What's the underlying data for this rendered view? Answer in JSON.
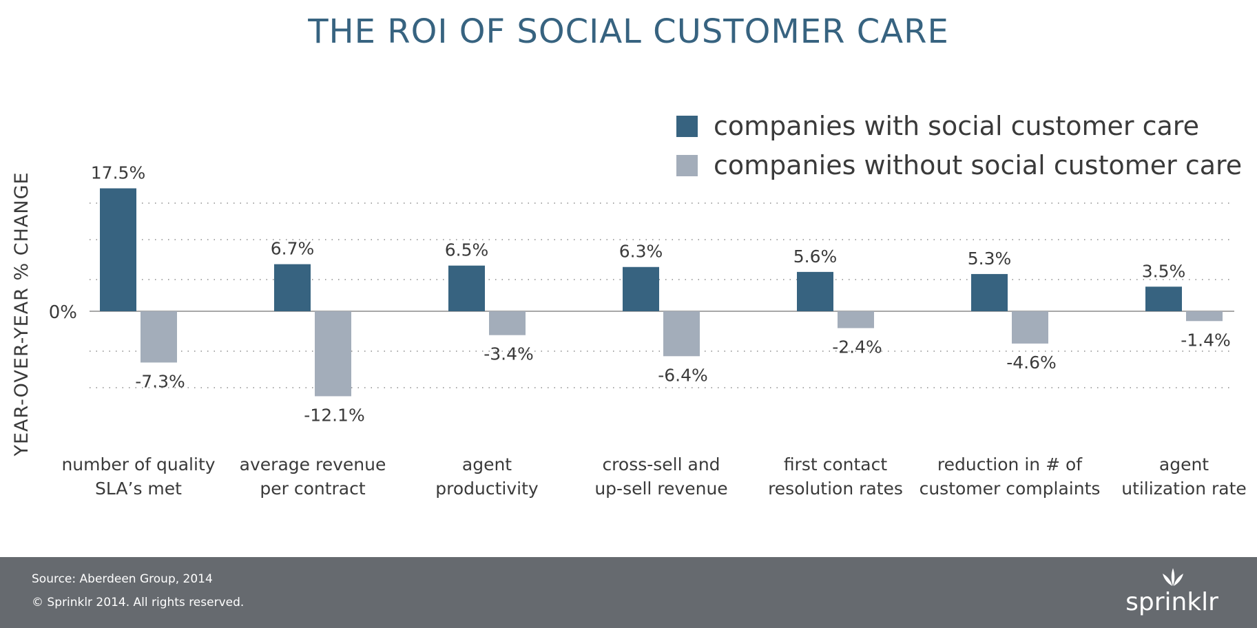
{
  "chart_data": {
    "type": "bar",
    "title": "THE ROI OF SOCIAL CUSTOMER CARE",
    "ylabel": "YEAR-OVER-YEAR % CHANGE",
    "zero_label": "0%",
    "ylim": [
      -12.1,
      17.5
    ],
    "grid": "dotted",
    "legend_position": "top-right",
    "categories": [
      [
        "number of quality",
        "SLA’s met"
      ],
      [
        "average revenue",
        "per contract"
      ],
      [
        "agent",
        "productivity"
      ],
      [
        "cross-sell and",
        "up-sell revenue"
      ],
      [
        "first contact",
        "resolution rates"
      ],
      [
        "reduction in # of",
        "customer complaints"
      ],
      [
        "agent",
        "utilization rate"
      ]
    ],
    "series": [
      {
        "name": "companies with social customer care",
        "color": "#376380",
        "values": [
          17.5,
          6.7,
          6.5,
          6.3,
          5.6,
          5.3,
          3.5
        ],
        "labels": [
          "17.5%",
          "6.7%",
          "6.5%",
          "6.3%",
          "5.6%",
          "5.3%",
          "3.5%"
        ]
      },
      {
        "name": "companies without social customer care",
        "color": "#a3adba",
        "values": [
          -7.3,
          -12.1,
          -3.4,
          -6.4,
          -2.4,
          -4.6,
          -1.4
        ],
        "labels": [
          "-7.3%",
          "-12.1%",
          "-3.4%",
          "-6.4%",
          "-2.4%",
          "-4.6%",
          "-1.4%"
        ]
      }
    ]
  },
  "footer": {
    "source": "Source: Aberdeen Group, 2014",
    "copyright": "© Sprinklr 2014. All rights reserved.",
    "brand": "sprinklr",
    "brand_icon": "sprinklr-logo-icon"
  }
}
